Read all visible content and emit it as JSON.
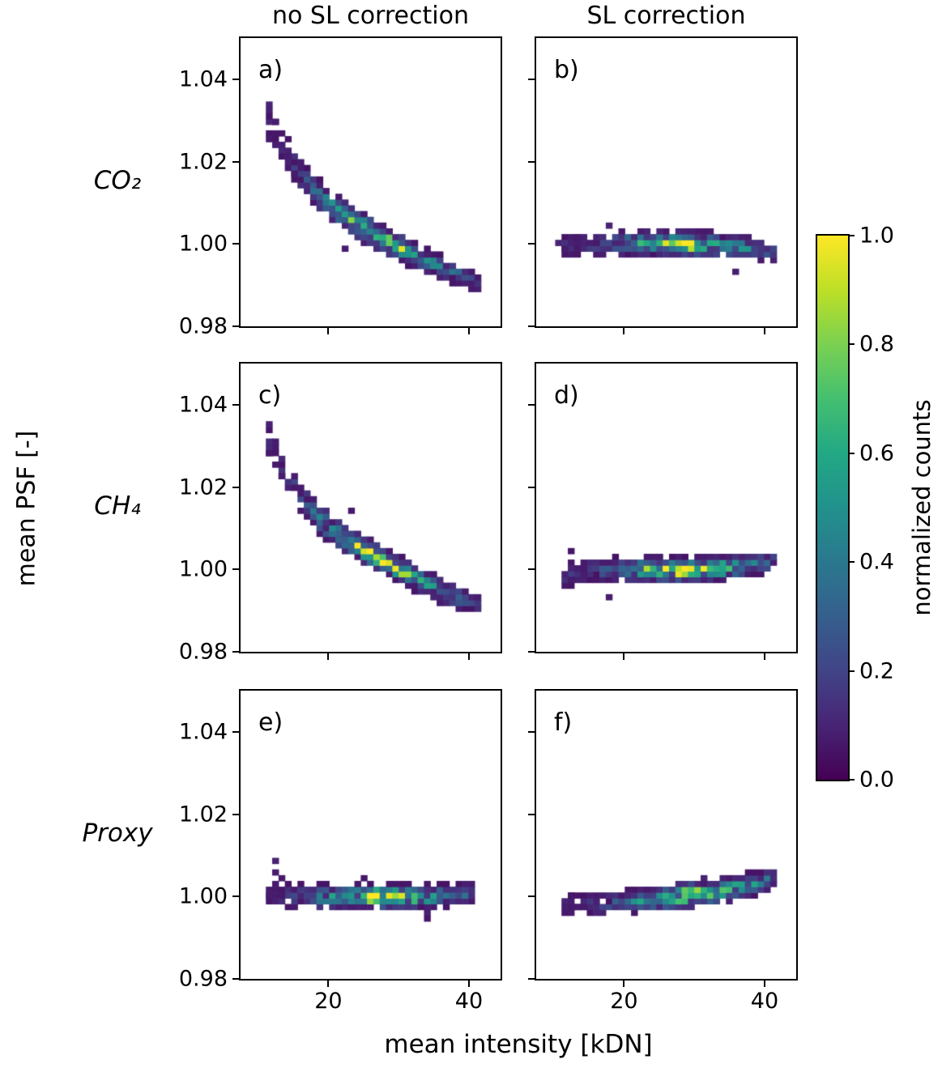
{
  "chart_data": {
    "type": "heatmap",
    "description": "2x3 grid of 2D histograms (viridis colormap) of mean PSF vs mean intensity, for CO2, CH4 and Proxy, without and with stray-light (SL) correction",
    "col_titles": [
      "no SL correction",
      "SL correction"
    ],
    "row_labels": [
      "CO₂",
      "CH₄",
      "Proxy"
    ],
    "axes": {
      "xlabel": "mean intensity [kDN]",
      "ylabel": "mean PSF [-]",
      "xlim": [
        7.5,
        44.5
      ],
      "ylim": [
        0.98,
        1.05
      ],
      "x_ticks": [
        {
          "v": 20,
          "label": "20"
        },
        {
          "v": 40,
          "label": "40"
        }
      ],
      "y_ticks": [
        {
          "v": 1.04,
          "label": "1.04"
        },
        {
          "v": 1.02,
          "label": "1.02"
        },
        {
          "v": 1.0,
          "label": "1.00"
        },
        {
          "v": 0.98,
          "label": "0.98"
        }
      ]
    },
    "bin": {
      "dx": 0.9,
      "dy": 0.0014
    },
    "colorbar": {
      "label": "normalized counts",
      "ticks": [
        {
          "v": 1.0,
          "label": "1.0"
        },
        {
          "v": 0.8,
          "label": "0.8"
        },
        {
          "v": 0.6,
          "label": "0.6"
        },
        {
          "v": 0.4,
          "label": "0.4"
        },
        {
          "v": 0.2,
          "label": "0.2"
        },
        {
          "v": 0.0,
          "label": "0.0"
        }
      ]
    },
    "colormap_stops": [
      [
        0.0,
        "#440154"
      ],
      [
        0.1,
        "#482475"
      ],
      [
        0.2,
        "#414487"
      ],
      [
        0.3,
        "#355f8d"
      ],
      [
        0.4,
        "#2a788e"
      ],
      [
        0.5,
        "#21918c"
      ],
      [
        0.6,
        "#22a884"
      ],
      [
        0.7,
        "#44bf70"
      ],
      [
        0.8,
        "#7ad151"
      ],
      [
        0.9,
        "#bddf26"
      ],
      [
        1.0,
        "#fde725"
      ]
    ],
    "panels": [
      {
        "id": "a",
        "label": "a)",
        "row": 0,
        "col": 0,
        "gas": "CO₂",
        "correction": "none",
        "seed": 101,
        "xmin": 10.8,
        "xmax": 41.5,
        "cutoff": 0.05,
        "ridge_x": [
          11,
          13,
          15,
          17,
          19,
          21,
          23,
          25,
          27,
          29,
          31,
          33,
          35,
          37,
          39,
          41
        ],
        "ridge_y": [
          1.0315,
          1.0255,
          1.0195,
          1.0148,
          1.011,
          1.0082,
          1.006,
          1.004,
          1.002,
          1.0002,
          0.9985,
          0.9968,
          0.9952,
          0.9938,
          0.9925,
          0.9908
        ],
        "ridge_a": [
          0.1,
          0.13,
          0.17,
          0.25,
          0.38,
          0.52,
          0.7,
          0.88,
          1.0,
          0.88,
          0.68,
          0.52,
          0.42,
          0.34,
          0.26,
          0.16
        ],
        "ridge_s": [
          0.003,
          0.0027,
          0.0024,
          0.0022,
          0.002,
          0.0018,
          0.0017,
          0.0016,
          0.0015,
          0.0015,
          0.0015,
          0.0015,
          0.0015,
          0.0015,
          0.0015,
          0.0014
        ],
        "extra_points": [
          [
            11.3,
            1.034,
            0.1
          ],
          [
            12.1,
            1.03,
            0.08
          ],
          [
            13.0,
            1.024,
            0.09
          ],
          [
            11.8,
            1.026,
            0.07
          ],
          [
            14.2,
            1.021,
            0.08
          ],
          [
            15.1,
            1.017,
            0.07
          ]
        ]
      },
      {
        "id": "b",
        "label": "b)",
        "row": 0,
        "col": 1,
        "gas": "CO₂",
        "correction": "SL",
        "seed": 202,
        "xmin": 10.8,
        "xmax": 41.8,
        "cutoff": 0.05,
        "ridge_x": [
          11,
          13.5,
          16,
          18.5,
          21,
          23.5,
          26,
          28,
          30,
          32.5,
          35,
          37.5,
          40,
          41.5
        ],
        "ridge_y": [
          1.0003,
          1.0,
          0.9998,
          1.0,
          1.0002,
          1.0003,
          1.0002,
          1.0001,
          1.0,
          0.9999,
          0.9996,
          0.9991,
          0.9984,
          0.9979
        ],
        "ridge_a": [
          0.14,
          0.13,
          0.16,
          0.28,
          0.45,
          0.68,
          0.92,
          1.0,
          0.9,
          0.72,
          0.55,
          0.4,
          0.28,
          0.18
        ],
        "ridge_s": [
          0.002,
          0.002,
          0.0018,
          0.0016,
          0.0015,
          0.0014,
          0.0014,
          0.0014,
          0.0014,
          0.0014,
          0.0014,
          0.0014,
          0.0013,
          0.0013
        ],
        "extra_points": [
          [
            11.0,
            1.0005,
            0.1
          ],
          [
            11.8,
            0.9993,
            0.08
          ],
          [
            12.7,
            1.0008,
            0.09
          ],
          [
            13.5,
            0.999,
            0.07
          ],
          [
            12.2,
            0.9972,
            0.07
          ],
          [
            14.6,
            1.0004,
            0.09
          ],
          [
            15.4,
            0.9996,
            0.08
          ],
          [
            16.2,
            1.001,
            0.07
          ],
          [
            13.1,
            1.0022,
            0.07
          ]
        ]
      },
      {
        "id": "c",
        "label": "c)",
        "row": 1,
        "col": 0,
        "gas": "CH₄",
        "correction": "none",
        "seed": 303,
        "xmin": 10.8,
        "xmax": 41.5,
        "cutoff": 0.05,
        "ridge_x": [
          11,
          13,
          15,
          17,
          19,
          21,
          23,
          25,
          27,
          29,
          31,
          33,
          35,
          37,
          39,
          41
        ],
        "ridge_y": [
          1.033,
          1.027,
          1.0205,
          1.0158,
          1.012,
          1.009,
          1.0068,
          1.0048,
          1.0028,
          1.001,
          0.9992,
          0.9974,
          0.9958,
          0.9942,
          0.9928,
          0.9915
        ],
        "ridge_a": [
          0.1,
          0.13,
          0.17,
          0.25,
          0.38,
          0.52,
          0.7,
          0.9,
          1.0,
          0.88,
          0.68,
          0.52,
          0.42,
          0.34,
          0.26,
          0.16
        ],
        "ridge_s": [
          0.003,
          0.0027,
          0.0024,
          0.0022,
          0.002,
          0.0018,
          0.0017,
          0.0016,
          0.0015,
          0.0015,
          0.0015,
          0.0015,
          0.0015,
          0.0015,
          0.0015,
          0.0014
        ],
        "extra_points": [
          [
            11.2,
            1.0355,
            0.09
          ],
          [
            12.0,
            1.031,
            0.08
          ],
          [
            12.8,
            1.026,
            0.07
          ],
          [
            13.6,
            1.023,
            0.08
          ],
          [
            11.6,
            1.0285,
            0.07
          ],
          [
            15.4,
            1.0195,
            0.07
          ]
        ]
      },
      {
        "id": "d",
        "label": "d)",
        "row": 1,
        "col": 1,
        "gas": "CH₄",
        "correction": "SL",
        "seed": 404,
        "xmin": 10.8,
        "xmax": 41.8,
        "cutoff": 0.05,
        "ridge_x": [
          11,
          13.5,
          16,
          18.5,
          21,
          23.5,
          26,
          28,
          30,
          32.5,
          35,
          37.5,
          40,
          41.5
        ],
        "ridge_y": [
          0.9988,
          0.9992,
          0.9996,
          0.9999,
          1.0,
          1.0,
          1.0,
          1.0,
          1.0,
          1.0002,
          1.0005,
          1.001,
          1.0016,
          1.002
        ],
        "ridge_a": [
          0.12,
          0.14,
          0.18,
          0.3,
          0.48,
          0.7,
          0.92,
          1.0,
          0.92,
          0.78,
          0.62,
          0.46,
          0.32,
          0.22
        ],
        "ridge_s": [
          0.002,
          0.002,
          0.0018,
          0.0016,
          0.0015,
          0.0014,
          0.0014,
          0.0014,
          0.0014,
          0.0014,
          0.0014,
          0.0014,
          0.0013,
          0.0013
        ],
        "extra_points": [
          [
            11.2,
            0.999,
            0.09
          ],
          [
            12.0,
            0.9978,
            0.07
          ],
          [
            12.9,
            0.9998,
            0.08
          ],
          [
            13.8,
            1.0005,
            0.07
          ],
          [
            14.7,
            0.9992,
            0.08
          ],
          [
            12.4,
            1.004,
            0.06
          ]
        ]
      },
      {
        "id": "e",
        "label": "e)",
        "row": 2,
        "col": 0,
        "gas": "Proxy",
        "correction": "none",
        "seed": 505,
        "xmin": 11.0,
        "xmax": 40.8,
        "cutoff": 0.05,
        "ridge_x": [
          11,
          13.5,
          16,
          18.5,
          21,
          23.5,
          26,
          28,
          30,
          32.5,
          35,
          37.5,
          40,
          41.5
        ],
        "ridge_y": [
          1.0005,
          1.0002,
          1.0,
          0.9999,
          1.0,
          1.0,
          1.0001,
          1.0,
          1.0,
          0.9999,
          1.0,
          1.0003,
          1.0008,
          1.0012
        ],
        "ridge_a": [
          0.1,
          0.14,
          0.2,
          0.34,
          0.5,
          0.7,
          0.95,
          1.0,
          0.85,
          0.65,
          0.5,
          0.38,
          0.28,
          0.16
        ],
        "ridge_s": [
          0.0018,
          0.0018,
          0.0017,
          0.0016,
          0.0015,
          0.0015,
          0.0014,
          0.0014,
          0.0014,
          0.0014,
          0.0014,
          0.0014,
          0.0014,
          0.0013
        ],
        "extra_points": [
          [
            12.0,
            1.0088,
            0.09
          ],
          [
            12.8,
            1.0052,
            0.08
          ],
          [
            13.6,
            1.0046,
            0.07
          ],
          [
            12.3,
            1.003,
            0.07
          ],
          [
            11.8,
            1.0006,
            0.08
          ],
          [
            13.0,
            0.9998,
            0.07
          ]
        ]
      },
      {
        "id": "f",
        "label": "f)",
        "row": 2,
        "col": 1,
        "gas": "Proxy",
        "correction": "SL",
        "seed": 606,
        "xmin": 11.0,
        "xmax": 41.8,
        "cutoff": 0.05,
        "ridge_x": [
          12,
          14,
          17,
          20,
          23,
          26,
          28,
          30,
          33,
          36,
          39,
          41,
          41.5,
          42
        ],
        "ridge_y": [
          0.9978,
          0.998,
          0.9984,
          0.9988,
          0.9993,
          0.9998,
          1.0002,
          1.0006,
          1.0013,
          1.0022,
          1.0034,
          1.0044,
          1.0046,
          1.0048
        ],
        "ridge_a": [
          0.1,
          0.13,
          0.18,
          0.3,
          0.5,
          0.8,
          1.0,
          0.92,
          0.78,
          0.6,
          0.42,
          0.3,
          0.25,
          0.2
        ],
        "ridge_s": [
          0.0018,
          0.0018,
          0.0017,
          0.0016,
          0.0015,
          0.0014,
          0.0014,
          0.0014,
          0.0014,
          0.0014,
          0.0014,
          0.0013,
          0.0013,
          0.0013
        ],
        "extra_points": [
          [
            11.4,
            0.998,
            0.08
          ],
          [
            12.2,
            0.9974,
            0.07
          ],
          [
            13.1,
            0.9982,
            0.08
          ],
          [
            14.0,
            0.997,
            0.07
          ],
          [
            12.6,
            1.0002,
            0.06
          ]
        ]
      }
    ]
  }
}
